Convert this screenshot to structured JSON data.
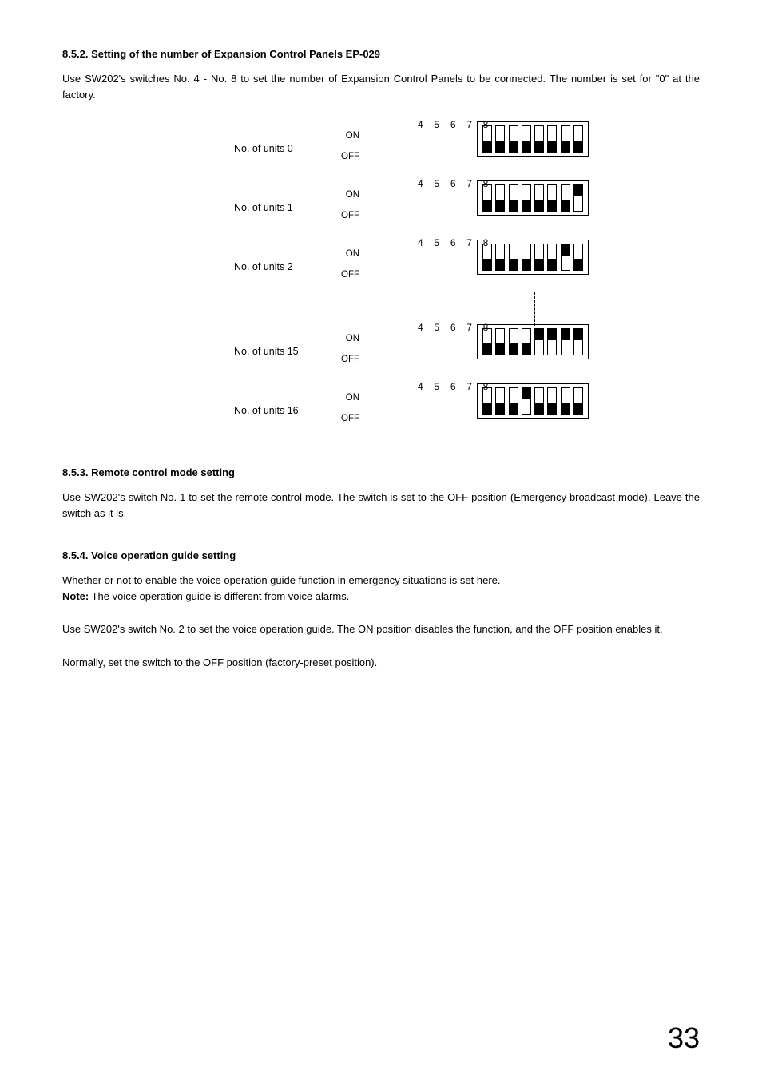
{
  "section852": {
    "heading": "8.5.2. Setting of the number of Expansion Control Panels EP-029",
    "para": "Use SW202's switches No. 4 - No. 8 to set the number of Expansion Control Panels to be connected. The number is set for \"0\" at the factory.",
    "numHeader": "4 5 6 7 8",
    "onLabel": "ON",
    "offLabel": "OFF",
    "rows": [
      {
        "label": "No. of units  0",
        "sw": [
          "off",
          "off",
          "off",
          "off",
          "off",
          "off",
          "off",
          "off"
        ]
      },
      {
        "label": "No. of units  1",
        "sw": [
          "off",
          "off",
          "off",
          "off",
          "off",
          "off",
          "off",
          "on"
        ]
      },
      {
        "label": "No. of units  2",
        "sw": [
          "off",
          "off",
          "off",
          "off",
          "off",
          "off",
          "on",
          "off"
        ]
      },
      {
        "label": "No. of units  15",
        "sw": [
          "off",
          "off",
          "off",
          "off",
          "on",
          "on",
          "on",
          "on"
        ]
      },
      {
        "label": "No. of units  16",
        "sw": [
          "off",
          "off",
          "off",
          "on",
          "off",
          "off",
          "off",
          "off"
        ]
      }
    ],
    "showDotsAfterIndex": 2
  },
  "section853": {
    "heading": "8.5.3. Remote control mode setting",
    "para": "Use SW202's switch No. 1 to set the remote control mode. The switch is set to the OFF position (Emergency broadcast mode). Leave the switch as it is."
  },
  "section854": {
    "heading": "8.5.4. Voice operation guide setting",
    "para1": "Whether or not to enable the voice operation guide function in emergency situations is set here.",
    "noteLabel": "Note:",
    "noteText": " The voice operation guide is different from voice alarms.",
    "para2": "Use SW202's switch No. 2 to set the voice operation guide. The ON position disables the function, and the OFF position enables it.",
    "para3": "Normally, set the switch to the OFF position (factory-preset position)."
  },
  "pageNumber": "33",
  "colors": {
    "text": "#000000",
    "background": "#ffffff",
    "border": "#000000"
  },
  "fonts": {
    "body_pt": 10,
    "heading_pt": 10,
    "pagenum_pt": 28
  }
}
